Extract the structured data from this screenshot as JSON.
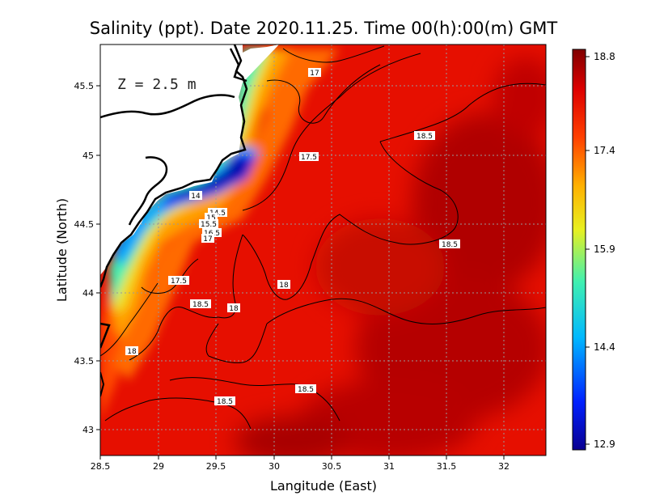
{
  "title": "Salinity (ppt). Date 2020.11.25. Time 00(h):00(m) GMT",
  "depth_label": "Z = 2.5 m",
  "axes": {
    "xlabel": "Langitude (East)",
    "ylabel": "Latitude (North)",
    "xticks": [
      "28.5",
      "29",
      "29.5",
      "30",
      "30.5",
      "31",
      "31.5",
      "32"
    ],
    "yticks": [
      "43",
      "43.5",
      "44",
      "44.5",
      "45",
      "45.5"
    ]
  },
  "colorbar": {
    "ticks": [
      "18.8",
      "17.4",
      "15.9",
      "14.4",
      "12.9"
    ],
    "min": 12.9,
    "max": 18.8
  },
  "contour_labels": [
    "17",
    "18.5",
    "17.5",
    "14",
    "14.5",
    "15",
    "15.5",
    "16.5",
    "17",
    "18.5",
    "17.5",
    "18",
    "18.5",
    "18",
    "18",
    "18.5",
    "18.5"
  ]
}
